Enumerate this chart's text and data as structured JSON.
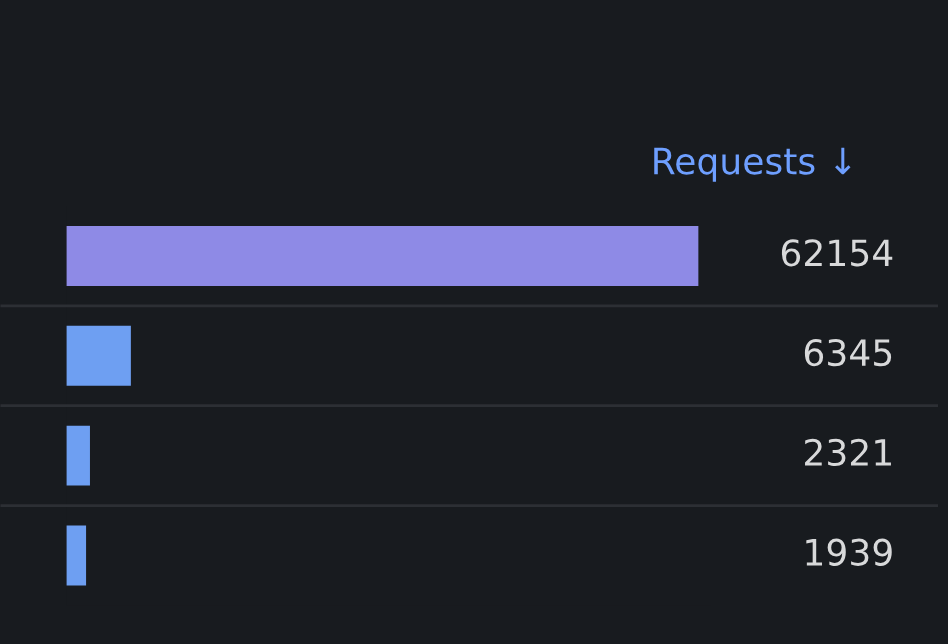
{
  "chart_data": {
    "type": "bar",
    "orientation": "horizontal",
    "title": "Requests ↓",
    "categories": [
      null,
      null,
      null,
      null
    ],
    "values": [
      62154,
      6345,
      2321,
      1939
    ],
    "colors": [
      "#8e8ae6",
      "#6e9ff2",
      "#6e9ff2",
      "#6e9ff2"
    ],
    "data_labels": true,
    "grid": false,
    "legend": false
  }
}
